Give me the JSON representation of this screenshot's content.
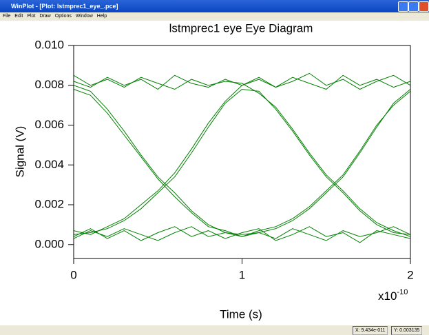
{
  "window": {
    "title": "WinPlot - [Plot: lstmprec1_eye_.pce]",
    "menu": [
      "File",
      "Edit",
      "Plot",
      "Draw",
      "Options",
      "Window",
      "Help"
    ],
    "status": [
      "X: 9.434e-011",
      "Y: 0.003135"
    ]
  },
  "chart_data": {
    "type": "line",
    "title": "lstmprec1 eye  Eye Diagram",
    "x_label": "Time (s)",
    "y_label": "Signal (V)",
    "x_multiplier": {
      "base": "x10",
      "exponent": "-10"
    },
    "xlim": [
      0,
      2
    ],
    "ylim": [
      -0.0007,
      0.01
    ],
    "xticks": [
      0,
      1,
      2
    ],
    "yticks": [
      {
        "value": 0,
        "label": "0.000"
      },
      {
        "value": 0.002,
        "label": "0.002"
      },
      {
        "value": 0.004,
        "label": "0.004"
      },
      {
        "value": 0.006,
        "label": "0.006"
      },
      {
        "value": 0.008,
        "label": "0.008"
      },
      {
        "value": 0.01,
        "label": "0.010"
      }
    ],
    "x": [
      0,
      0.1,
      0.2,
      0.3,
      0.4,
      0.5,
      0.6,
      0.7,
      0.8,
      0.9,
      1,
      1.1,
      1.2,
      1.3,
      1.4,
      1.5,
      1.6,
      1.7,
      1.8,
      1.9,
      2
    ],
    "series": [
      {
        "color": "#008000",
        "values": [
          0.0082,
          0.0079,
          0.0084,
          0.008,
          0.0083,
          0.0078,
          0.0085,
          0.0081,
          0.0079,
          0.0083,
          0.008,
          0.0084,
          0.0079,
          0.0082,
          0.0086,
          0.008,
          0.0083,
          0.0078,
          0.0082,
          0.0085,
          0.008
        ]
      },
      {
        "color": "#008000",
        "values": [
          0.0004,
          0.0008,
          0.0003,
          0.0007,
          0.0002,
          0.0006,
          0.0009,
          0.0004,
          0.0007,
          0.0003,
          0.0006,
          0.0008,
          0.0002,
          0.0005,
          0.0009,
          0.0004,
          0.0006,
          0.0001,
          0.0007,
          0.0005,
          0.0003
        ]
      },
      {
        "color": "#008000",
        "values": [
          0.008,
          0.0077,
          0.0068,
          0.0057,
          0.0045,
          0.0034,
          0.0026,
          0.0017,
          0.001,
          0.0006,
          0.0005,
          0.0006,
          0.0008,
          0.0012,
          0.0018,
          0.0026,
          0.0034,
          0.0046,
          0.0059,
          0.0071,
          0.0078
        ]
      },
      {
        "color": "#008000",
        "values": [
          0.0005,
          0.0006,
          0.0008,
          0.0012,
          0.0018,
          0.0026,
          0.0034,
          0.0046,
          0.0059,
          0.0071,
          0.0078,
          0.0077,
          0.0068,
          0.0057,
          0.0045,
          0.0034,
          0.0026,
          0.0017,
          0.001,
          0.0006,
          0.0005
        ]
      },
      {
        "color": "#008000",
        "values": [
          0.0078,
          0.0075,
          0.0066,
          0.0055,
          0.0044,
          0.0033,
          0.0024,
          0.0016,
          0.0009,
          0.0007,
          0.0004,
          0.0006,
          0.0003,
          0.0008,
          0.0005,
          0.0002,
          0.0007,
          0.0004,
          0.0006,
          0.0009,
          0.0005
        ]
      },
      {
        "color": "#008000",
        "values": [
          0.0007,
          0.0005,
          0.0009,
          0.0013,
          0.002,
          0.0027,
          0.0036,
          0.0048,
          0.0061,
          0.0072,
          0.008,
          0.0083,
          0.0079,
          0.0084,
          0.0081,
          0.0078,
          0.0085,
          0.008,
          0.0083,
          0.0079,
          0.0082
        ]
      },
      {
        "color": "#008000",
        "values": [
          0.0085,
          0.008,
          0.0083,
          0.0079,
          0.0084,
          0.0081,
          0.0078,
          0.0083,
          0.008,
          0.0082,
          0.0081,
          0.0076,
          0.0069,
          0.0058,
          0.0046,
          0.0035,
          0.0027,
          0.0018,
          0.0011,
          0.0007,
          0.0004
        ]
      },
      {
        "color": "#008000",
        "values": [
          0.0003,
          0.0007,
          0.0004,
          0.0008,
          0.0005,
          0.0002,
          0.0006,
          0.0009,
          0.0004,
          0.0006,
          0.0004,
          0.0007,
          0.0009,
          0.0013,
          0.0019,
          0.0027,
          0.0035,
          0.0047,
          0.006,
          0.007,
          0.0077
        ]
      }
    ]
  }
}
